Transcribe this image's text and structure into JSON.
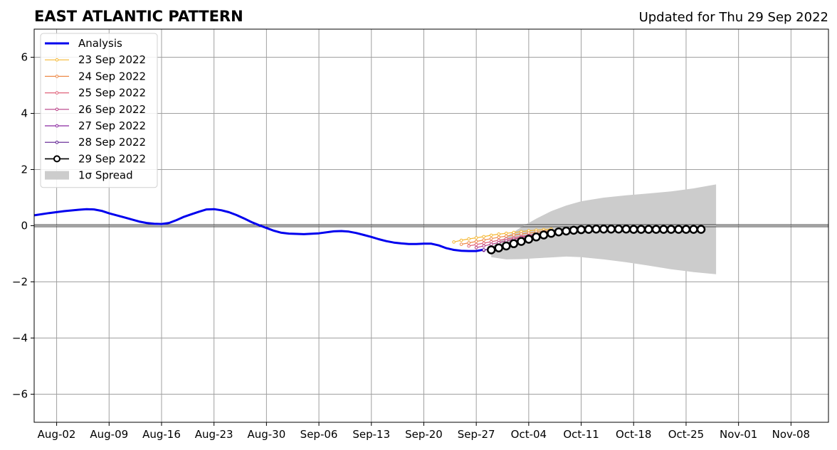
{
  "chart_data": {
    "type": "line",
    "title": "EAST ATLANTIC PATTERN",
    "subtitle": "Updated for Thu 29 Sep 2022",
    "xlabel": "",
    "ylabel": "",
    "xlim": [
      "2022-07-30",
      "2022-11-13"
    ],
    "ylim": [
      -7,
      7
    ],
    "grid": true,
    "legend_position": "top-left",
    "x_ticks": [
      {
        "date": "2022-08-02",
        "label": "Aug-02"
      },
      {
        "date": "2022-08-09",
        "label": "Aug-09"
      },
      {
        "date": "2022-08-16",
        "label": "Aug-16"
      },
      {
        "date": "2022-08-23",
        "label": "Aug-23"
      },
      {
        "date": "2022-08-30",
        "label": "Aug-30"
      },
      {
        "date": "2022-09-06",
        "label": "Sep-06"
      },
      {
        "date": "2022-09-13",
        "label": "Sep-13"
      },
      {
        "date": "2022-09-20",
        "label": "Sep-20"
      },
      {
        "date": "2022-09-27",
        "label": "Sep-27"
      },
      {
        "date": "2022-10-04",
        "label": "Oct-04"
      },
      {
        "date": "2022-10-11",
        "label": "Oct-11"
      },
      {
        "date": "2022-10-18",
        "label": "Oct-18"
      },
      {
        "date": "2022-10-25",
        "label": "Oct-25"
      },
      {
        "date": "2022-11-01",
        "label": "Nov-01"
      },
      {
        "date": "2022-11-08",
        "label": "Nov-08"
      }
    ],
    "y_ticks": [
      {
        "value": 6,
        "label": "6"
      },
      {
        "value": 4,
        "label": "4"
      },
      {
        "value": 2,
        "label": "2"
      },
      {
        "value": 0,
        "label": "0"
      },
      {
        "value": -2,
        "label": "−2"
      },
      {
        "value": -4,
        "label": "−4"
      },
      {
        "value": -6,
        "label": "−6"
      }
    ],
    "analysis": {
      "name": "Analysis",
      "color": "#0000ee",
      "x": [
        "2022-07-30",
        "2022-08-01",
        "2022-08-03",
        "2022-08-05",
        "2022-08-06",
        "2022-08-07",
        "2022-08-08",
        "2022-08-09",
        "2022-08-11",
        "2022-08-13",
        "2022-08-14",
        "2022-08-15",
        "2022-08-16",
        "2022-08-17",
        "2022-08-18",
        "2022-08-19",
        "2022-08-20",
        "2022-08-21",
        "2022-08-22",
        "2022-08-23",
        "2022-08-24",
        "2022-08-25",
        "2022-08-26",
        "2022-08-27",
        "2022-08-28",
        "2022-08-29",
        "2022-08-30",
        "2022-08-31",
        "2022-09-01",
        "2022-09-02",
        "2022-09-03",
        "2022-09-04",
        "2022-09-06",
        "2022-09-08",
        "2022-09-09",
        "2022-09-10",
        "2022-09-11",
        "2022-09-12",
        "2022-09-13",
        "2022-09-14",
        "2022-09-15",
        "2022-09-16",
        "2022-09-17",
        "2022-09-18",
        "2022-09-19",
        "2022-09-20",
        "2022-09-21",
        "2022-09-22",
        "2022-09-23",
        "2022-09-24",
        "2022-09-25",
        "2022-09-26",
        "2022-09-27",
        "2022-09-28"
      ],
      "y": [
        0.37,
        0.45,
        0.52,
        0.57,
        0.59,
        0.58,
        0.53,
        0.44,
        0.3,
        0.15,
        0.1,
        0.07,
        0.06,
        0.1,
        0.2,
        0.32,
        0.41,
        0.5,
        0.58,
        0.59,
        0.55,
        0.48,
        0.38,
        0.26,
        0.13,
        0.02,
        -0.08,
        -0.18,
        -0.25,
        -0.28,
        -0.29,
        -0.3,
        -0.27,
        -0.2,
        -0.19,
        -0.21,
        -0.26,
        -0.33,
        -0.4,
        -0.48,
        -0.55,
        -0.6,
        -0.63,
        -0.65,
        -0.65,
        -0.64,
        -0.64,
        -0.7,
        -0.8,
        -0.86,
        -0.89,
        -0.9,
        -0.9,
        -0.85
      ]
    },
    "spread": {
      "name": "1σ Spread",
      "color": "#cccccc",
      "x": [
        "2022-09-29",
        "2022-10-01",
        "2022-10-03",
        "2022-10-05",
        "2022-10-07",
        "2022-10-09",
        "2022-10-11",
        "2022-10-14",
        "2022-10-17",
        "2022-10-20",
        "2022-10-23",
        "2022-10-26",
        "2022-10-29"
      ],
      "upper": [
        -0.75,
        -0.4,
        -0.05,
        0.25,
        0.52,
        0.72,
        0.87,
        1.0,
        1.08,
        1.15,
        1.22,
        1.33,
        1.47
      ],
      "lower": [
        -1.12,
        -1.2,
        -1.19,
        -1.16,
        -1.13,
        -1.1,
        -1.12,
        -1.2,
        -1.3,
        -1.42,
        -1.55,
        -1.65,
        -1.73
      ]
    },
    "series": [
      {
        "name": "23 Sep 2022",
        "color": "#f5b731",
        "start": "2022-09-24",
        "values": [
          -0.58,
          -0.52,
          -0.47,
          -0.43,
          -0.39,
          -0.34,
          -0.3,
          -0.27,
          -0.24,
          -0.21,
          -0.18,
          -0.16,
          -0.14,
          -0.12
        ]
      },
      {
        "name": "24 Sep 2022",
        "color": "#ee8a48",
        "start": "2022-09-25",
        "values": [
          -0.66,
          -0.61,
          -0.56,
          -0.51,
          -0.46,
          -0.41,
          -0.37,
          -0.33,
          -0.29,
          -0.26,
          -0.23,
          -0.2,
          -0.17
        ]
      },
      {
        "name": "25 Sep 2022",
        "color": "#e0637a",
        "start": "2022-09-26",
        "values": [
          -0.72,
          -0.67,
          -0.62,
          -0.57,
          -0.52,
          -0.47,
          -0.43,
          -0.38,
          -0.34,
          -0.3,
          -0.26,
          -0.22,
          -0.19,
          -0.16,
          -0.15,
          -0.15,
          -0.15,
          -0.15,
          -0.15,
          -0.15
        ]
      },
      {
        "name": "26 Sep 2022",
        "color": "#b63d84",
        "start": "2022-09-27",
        "values": [
          -0.78,
          -0.72,
          -0.66,
          -0.6,
          -0.54,
          -0.48,
          -0.42,
          -0.36,
          -0.31,
          -0.27
        ]
      },
      {
        "name": "27 Sep 2022",
        "color": "#8b28a1",
        "start": "2022-09-28",
        "values": [
          -0.88,
          -0.8,
          -0.72,
          -0.64,
          -0.56,
          -0.49,
          -0.42,
          -0.36
        ]
      },
      {
        "name": "28 Sep 2022",
        "color": "#5b1a8f",
        "start": "2022-09-28",
        "values": [
          -0.86,
          -0.83,
          -0.78,
          -0.72,
          -0.65,
          -0.58,
          -0.5,
          -0.43
        ]
      },
      {
        "name": "29 Sep 2022",
        "color": "#000000",
        "start": "2022-09-29",
        "values": [
          -0.86,
          -0.79,
          -0.72,
          -0.64,
          -0.56,
          -0.48,
          -0.4,
          -0.33,
          -0.27,
          -0.22,
          -0.19,
          -0.16,
          -0.14,
          -0.13,
          -0.12,
          -0.12,
          -0.12,
          -0.12,
          -0.12,
          -0.13,
          -0.13,
          -0.13,
          -0.13,
          -0.13,
          -0.13,
          -0.13,
          -0.13,
          -0.13,
          -0.13
        ]
      }
    ]
  }
}
